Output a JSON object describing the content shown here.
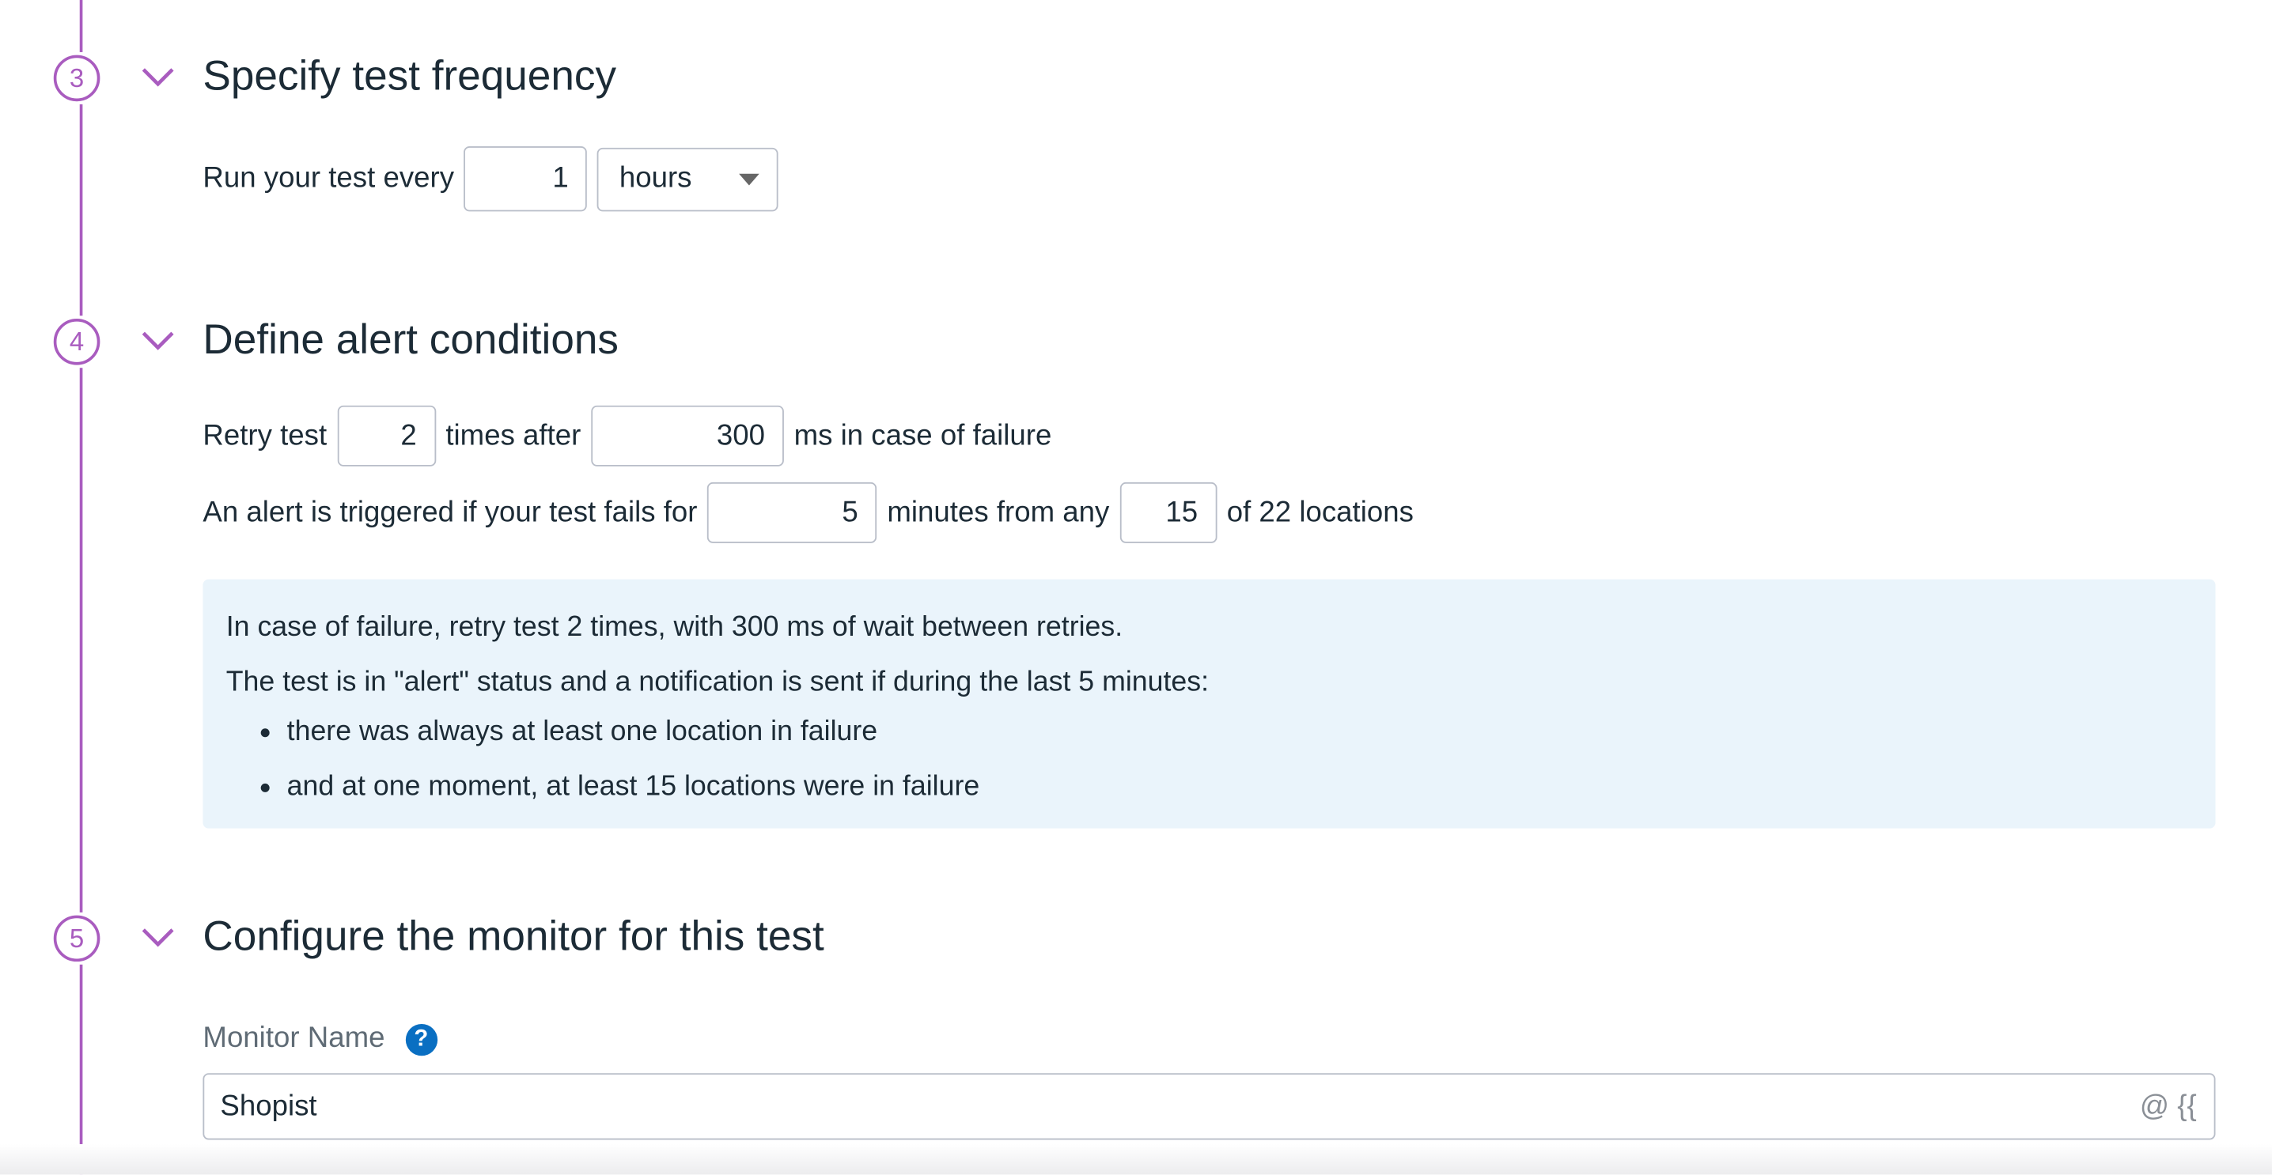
{
  "colors": {
    "accent": "#a95cbf",
    "info_bg": "#eaf4fb",
    "help_icon": "#0a6fc2"
  },
  "steps": [
    {
      "number": "3",
      "title": "Specify test frequency"
    },
    {
      "number": "4",
      "title": "Define alert conditions"
    },
    {
      "number": "5",
      "title": "Configure the monitor for this test"
    }
  ],
  "frequency": {
    "label": "Run your test every",
    "value": "1",
    "unit": "hours"
  },
  "alert": {
    "retry_label": "Retry test",
    "retry_count": "2",
    "times_after": "times after",
    "retry_delay": "300",
    "ms_label": "ms in case of failure",
    "trigger_label": "An alert is triggered if your test fails for",
    "minutes": "5",
    "minutes_label": "minutes from any",
    "locations": "15",
    "of_locations": "of 22 locations"
  },
  "info": {
    "line1": "In case of failure, retry test 2 times, with 300 ms of wait between retries.",
    "line2": "The test is in \"alert\" status and a notification is sent if during the last 5 minutes:",
    "bullets": [
      "there was always at least one location in failure",
      "and at one moment, at least 15 locations were in failure"
    ]
  },
  "monitor": {
    "label": "Monitor Name",
    "help_icon": "question-circle-icon",
    "value": "Shopist",
    "suggest": "@ {{"
  }
}
